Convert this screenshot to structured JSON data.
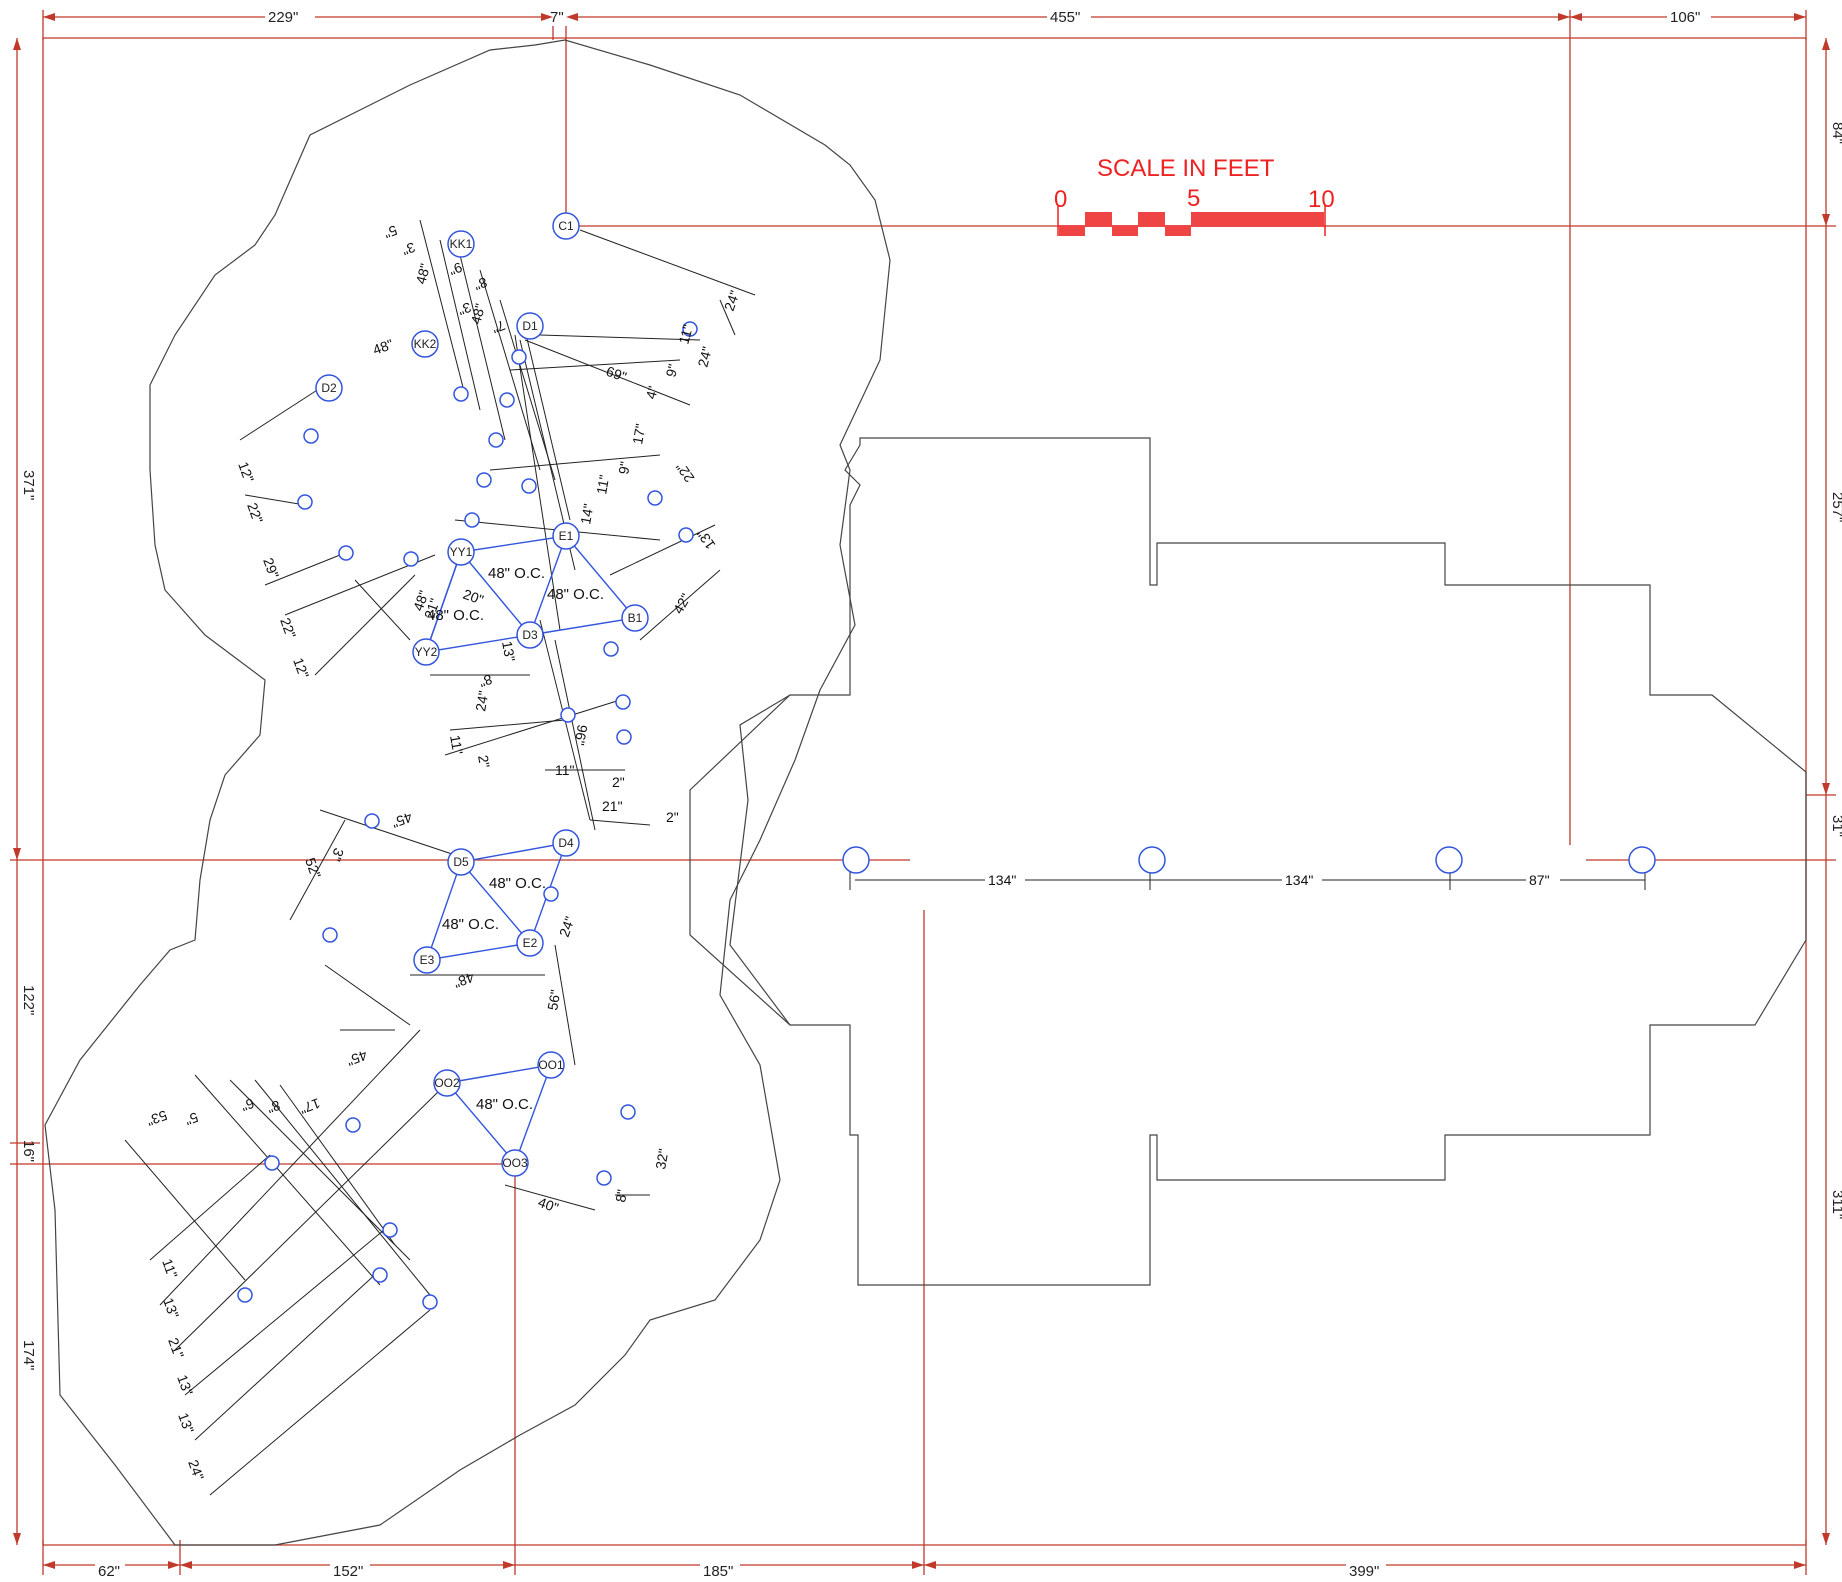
{
  "colors": {
    "dimension_red": "#c0392b",
    "scale_red": "#ee2222",
    "tree_blue": "#3355dd",
    "outline": "#444444"
  },
  "top_dims": [
    "229\"",
    "7\"",
    "455\"",
    "106\""
  ],
  "bottom_dims": [
    "62\"",
    "152\"",
    "185\"",
    "399\""
  ],
  "left_dims": [
    "371\"",
    "122\"",
    "16\"",
    "174\""
  ],
  "right_dims": [
    "84\"",
    "257\"",
    "31\"",
    "311\""
  ],
  "scale": {
    "title": "SCALE IN FEET",
    "labels": [
      "0",
      "5",
      "10"
    ]
  },
  "oc_labels": [
    "48\" O.C.",
    "48\" O.C.",
    "48\" O.C.",
    "48\" O.C.",
    "48\" O.C.",
    "48\" O.C."
  ],
  "nodes": [
    "C1",
    "KK1",
    "KK2",
    "D1",
    "D2",
    "E1",
    "YY1",
    "YY2",
    "D3",
    "B1",
    "D4",
    "D5",
    "E2",
    "E3",
    "OO1",
    "OO2",
    "OO3"
  ],
  "spacing_dims": [
    "134\"",
    "134\"",
    "87\""
  ],
  "small_dims": [
    "24\"",
    "5\"",
    "3\"",
    "9\"",
    "8\"",
    "3\"",
    "48\"",
    "48\"",
    "48\"",
    "7\"",
    "69\"",
    "24\"",
    "9\"",
    "11\"",
    "4\"",
    "17\"",
    "9\"",
    "11\"",
    "14\"",
    "22\"",
    "13\"",
    "42\"",
    "12\"",
    "22\"",
    "29\"",
    "22\"",
    "12\"",
    "21\"",
    "48\"",
    "20\"",
    "13\"",
    "8\"",
    "24\"",
    "11\"",
    "2\"",
    "96\"",
    "11\"",
    "2\"",
    "21\"",
    "2\"",
    "45\"",
    "3\"",
    "52\"",
    "24\"",
    "48\"",
    "56\"",
    "45\"",
    "53\"",
    "5\"",
    "6\"",
    "8\"",
    "17\"",
    "32\"",
    "40\"",
    "8\"",
    "11\"",
    "13\"",
    "21\"",
    "13\"",
    "13\"",
    "24\""
  ]
}
